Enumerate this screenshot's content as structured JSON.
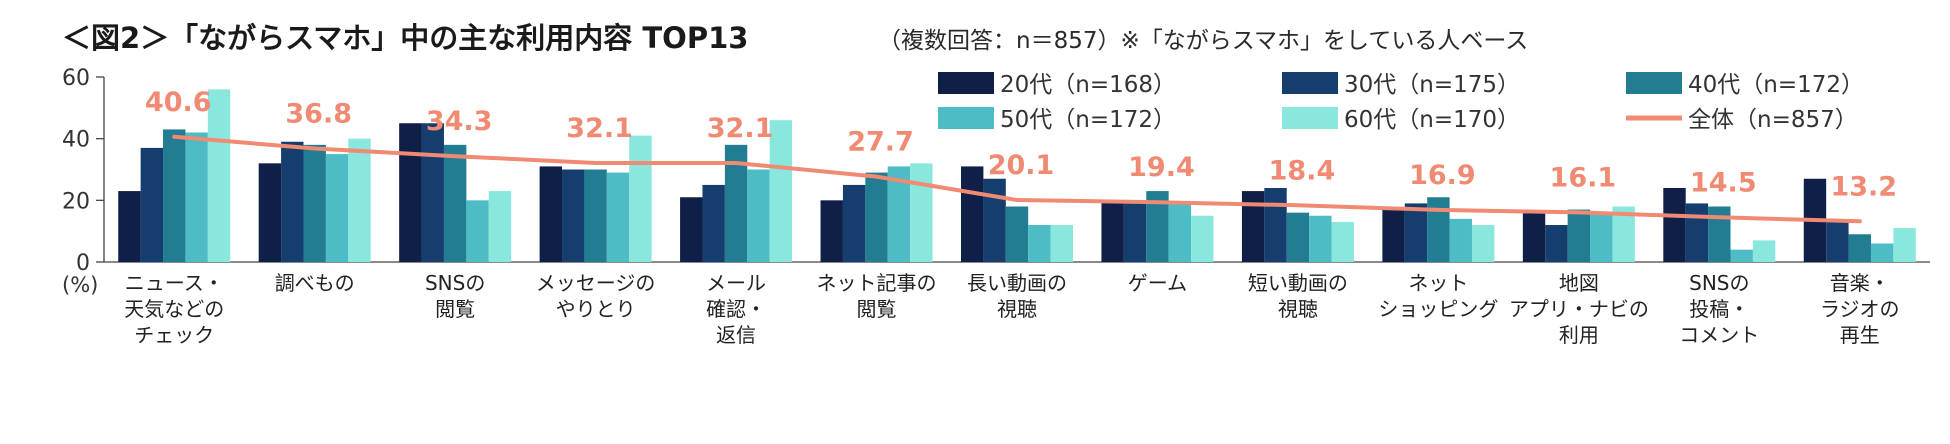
{
  "chart_data": {
    "type": "bar",
    "title": "＜図2＞「ながらスマホ」中の主な利用内容 TOP13",
    "subtitle": "（複数回答：n＝857）※「ながらスマホ」をしている人ベース",
    "ylabel": "(%)",
    "ylim": [
      0,
      60
    ],
    "yticks": [
      0,
      20,
      40,
      60
    ],
    "grid": false,
    "legend_position": "top-right",
    "categories": [
      "ニュース・\n天気などの\nチェック",
      "調べもの",
      "SNSの\n閲覧",
      "メッセージの\nやりとり",
      "メール\n確認・\n返信",
      "ネット記事の\n閲覧",
      "長い動画の\n視聴",
      "ゲーム",
      "短い動画の\n視聴",
      "ネット\nショッピング",
      "地図\nアプリ・ナビの\n利用",
      "SNSの\n投稿・\nコメント",
      "音楽・\nラジオの\n再生"
    ],
    "series": [
      {
        "name": "20代（n=168）",
        "color": "#0f1f47",
        "values": [
          23,
          32,
          45,
          31,
          21,
          20,
          31,
          20,
          23,
          17,
          16,
          24,
          27
        ]
      },
      {
        "name": "30代（n=175）",
        "color": "#153e6e",
        "values": [
          37,
          39,
          45,
          30,
          25,
          25,
          27,
          20,
          24,
          19,
          12,
          19,
          13
        ]
      },
      {
        "name": "40代（n=172）",
        "color": "#227d93",
        "values": [
          43,
          38,
          38,
          30,
          38,
          29,
          18,
          23,
          16,
          21,
          17,
          18,
          9
        ]
      },
      {
        "name": "50代（n=172）",
        "color": "#4ebcc4",
        "values": [
          42,
          35,
          20,
          29,
          30,
          31,
          12,
          19,
          15,
          14,
          16,
          4,
          6
        ]
      },
      {
        "name": "60代（n=170）",
        "color": "#8ae7de",
        "values": [
          56,
          40,
          23,
          41,
          46,
          32,
          12,
          15,
          13,
          12,
          18,
          7,
          11
        ]
      }
    ],
    "overall": {
      "name": "全体（n=857）",
      "color": "#f08a73",
      "values": [
        40.6,
        36.8,
        34.3,
        32.1,
        32.1,
        27.7,
        20.1,
        19.4,
        18.4,
        16.9,
        16.1,
        14.5,
        13.2
      ],
      "labels": [
        "40.6",
        "36.8",
        "34.3",
        "32.1",
        "32.1",
        "27.7",
        "20.1",
        "19.4",
        "18.4",
        "16.9",
        "16.1",
        "14.5",
        "13.2"
      ]
    }
  }
}
